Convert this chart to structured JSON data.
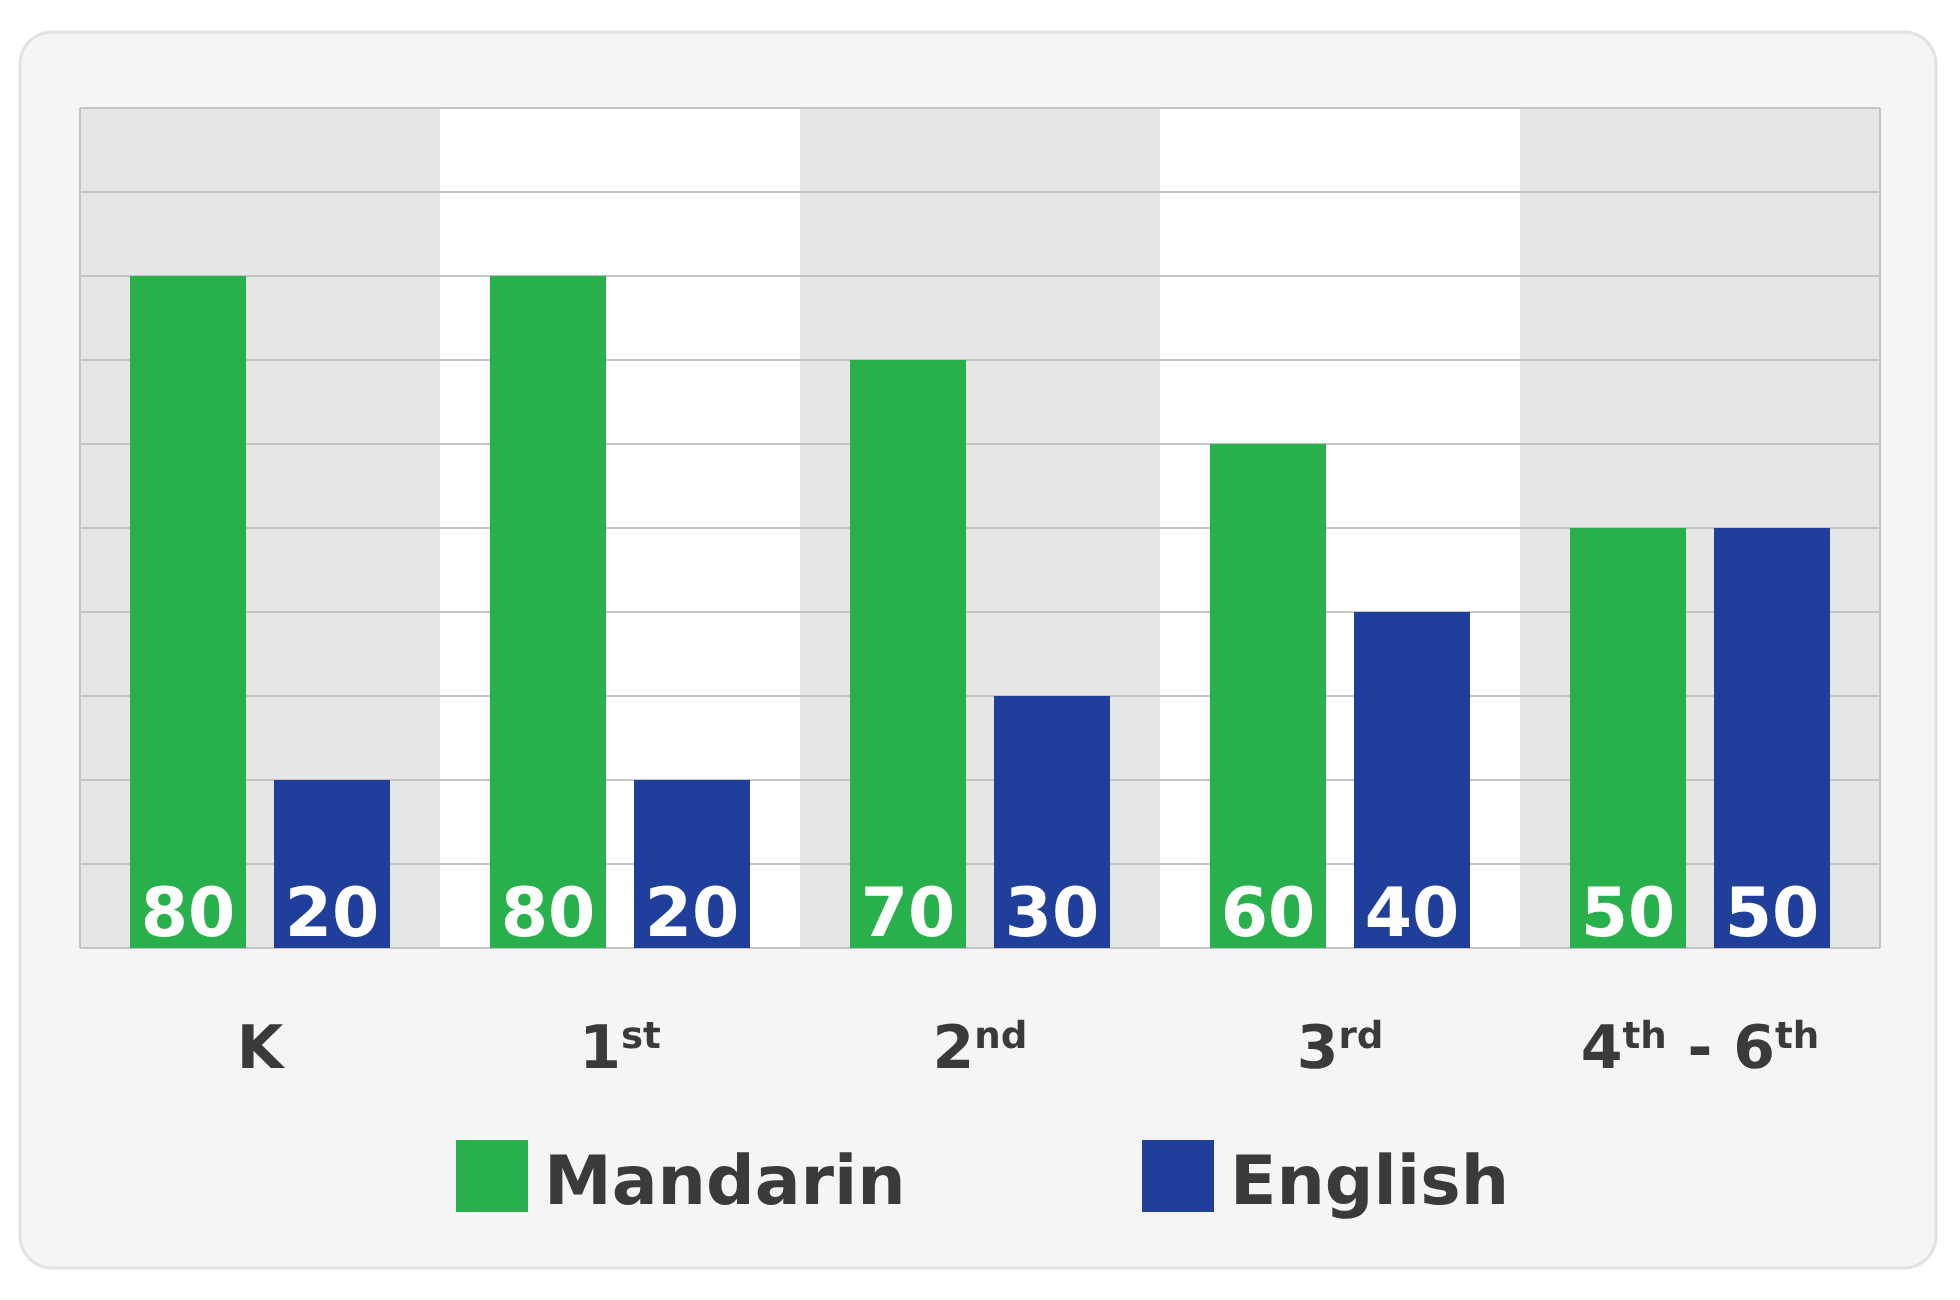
{
  "chart_data": {
    "type": "bar",
    "categories": [
      "K",
      "1$^{st}$",
      "2$^{nd}$",
      "3$^{rd}$",
      "4$^{th}$ - 6$^{th}$"
    ],
    "series": [
      {
        "name": "Mandarin",
        "color": "#27b04b",
        "values": [
          80,
          80,
          70,
          60,
          50
        ]
      },
      {
        "name": "English",
        "color": "#1f3f9b",
        "values": [
          20,
          20,
          30,
          40,
          50
        ]
      }
    ],
    "ylim": [
      0,
      100
    ],
    "yticks": [
      {
        "value": 0,
        "label": null
      },
      {
        "value": 10,
        "label": null
      },
      {
        "value": 20,
        "label": null
      },
      {
        "value": 30,
        "label": null
      },
      {
        "value": 40,
        "label": null
      },
      {
        "value": 50,
        "label": null
      },
      {
        "value": 60,
        "label": null
      },
      {
        "value": 70,
        "label": null
      },
      {
        "value": 80,
        "label": null
      },
      {
        "value": 90,
        "label": null
      },
      {
        "value": 100,
        "label": null
      }
    ],
    "grid": "y",
    "tick_labels": "x",
    "data_labels": true,
    "legend": "bottom"
  }
}
